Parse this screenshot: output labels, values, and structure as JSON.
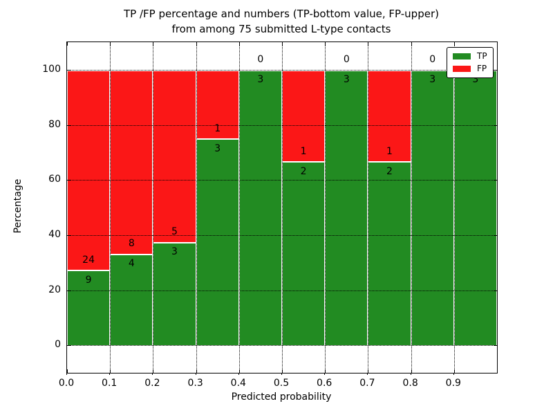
{
  "figure": {
    "title_line1": "TP /FP percentage and numbers (TP-bottom value, FP-upper)",
    "title_line2": "from among 75 submitted L-type contacts"
  },
  "chart_data": {
    "type": "bar",
    "stacked": true,
    "title": "TP /FP percentage and numbers (TP-bottom value, FP-upper) from among 75 submitted L-type contacts",
    "xlabel": "Predicted probability",
    "ylabel": "Percentage",
    "xlim": [
      0.0,
      1.0
    ],
    "ylim": [
      -10,
      110
    ],
    "grid": true,
    "legend_position": "upper right",
    "total_contacts": 75,
    "bin_width": 0.1,
    "bin_starts": [
      0.0,
      0.1,
      0.2,
      0.3,
      0.4,
      0.5,
      0.6,
      0.7,
      0.8,
      0.9
    ],
    "xtick_labels": [
      "0.0",
      "0.1",
      "0.2",
      "0.3",
      "0.4",
      "0.5",
      "0.6",
      "0.7",
      "0.8",
      "0.9"
    ],
    "ytick_values": [
      0,
      20,
      40,
      60,
      80,
      100
    ],
    "series": [
      {
        "name": "TP",
        "color": "#228b22",
        "values": [
          9,
          4,
          3,
          3,
          3,
          2,
          3,
          2,
          3,
          3
        ]
      },
      {
        "name": "FP",
        "color": "#fb1717",
        "values": [
          24,
          8,
          5,
          1,
          0,
          1,
          0,
          1,
          0,
          0
        ]
      }
    ],
    "tp_percentages": [
      27.3,
      33.3,
      37.5,
      75.0,
      100.0,
      66.7,
      100.0,
      66.7,
      100.0,
      100.0
    ],
    "legend": {
      "entries": [
        {
          "label": "TP",
          "color": "#228b22"
        },
        {
          "label": "FP",
          "color": "#fb1717"
        }
      ]
    }
  }
}
